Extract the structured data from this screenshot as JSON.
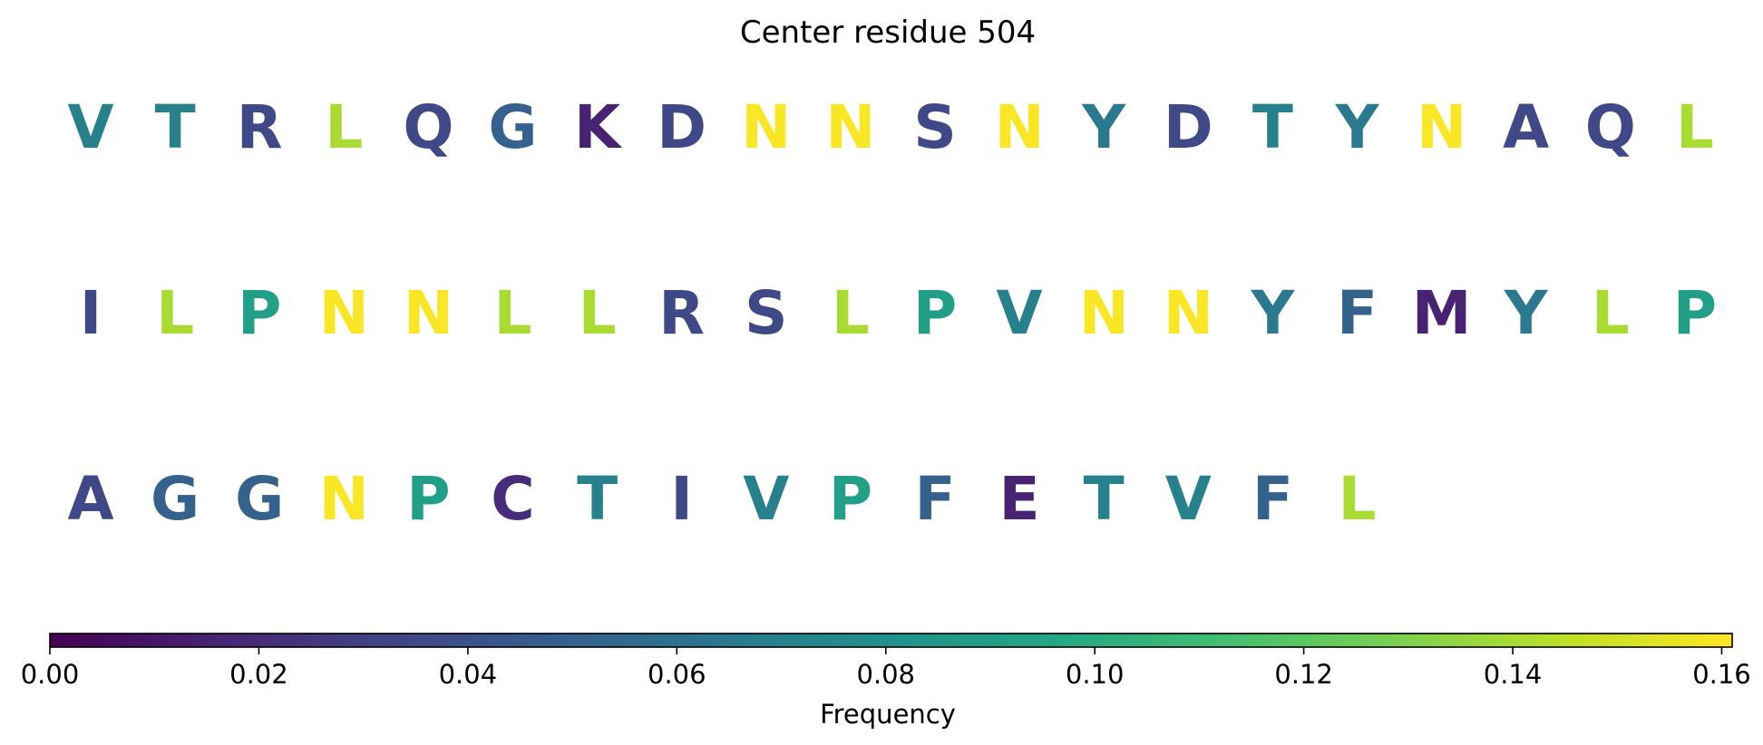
{
  "chart_data": {
    "type": "heatmap",
    "title": "Center residue 504",
    "colorbar": {
      "label": "Frequency",
      "range": [
        0,
        0.161
      ],
      "ticks": [
        "0.00",
        "0.02",
        "0.04",
        "0.06",
        "0.08",
        "0.10",
        "0.12",
        "0.14",
        "0.16"
      ],
      "tick_values": [
        0,
        0.02,
        0.04,
        0.06,
        0.08,
        0.1,
        0.12,
        0.14,
        0.16
      ],
      "colormap": "viridis",
      "orientation": "horizontal",
      "placement": "bottom"
    },
    "rows": [
      [
        {
          "residue": "V",
          "frequency": 0.07
        },
        {
          "residue": "T",
          "frequency": 0.07
        },
        {
          "residue": "R",
          "frequency": 0.035
        },
        {
          "residue": "L",
          "frequency": 0.14
        },
        {
          "residue": "Q",
          "frequency": 0.035
        },
        {
          "residue": "G",
          "frequency": 0.05
        },
        {
          "residue": "K",
          "frequency": 0.015
        },
        {
          "residue": "D",
          "frequency": 0.035
        },
        {
          "residue": "N",
          "frequency": 0.16
        },
        {
          "residue": "N",
          "frequency": 0.16
        },
        {
          "residue": "S",
          "frequency": 0.035
        },
        {
          "residue": "N",
          "frequency": 0.16
        },
        {
          "residue": "Y",
          "frequency": 0.065
        },
        {
          "residue": "D",
          "frequency": 0.035
        },
        {
          "residue": "T",
          "frequency": 0.07
        },
        {
          "residue": "Y",
          "frequency": 0.065
        },
        {
          "residue": "N",
          "frequency": 0.16
        },
        {
          "residue": "A",
          "frequency": 0.035
        },
        {
          "residue": "Q",
          "frequency": 0.035
        },
        {
          "residue": "L",
          "frequency": 0.14
        }
      ],
      [
        {
          "residue": "I",
          "frequency": 0.035
        },
        {
          "residue": "L",
          "frequency": 0.14
        },
        {
          "residue": "P",
          "frequency": 0.09
        },
        {
          "residue": "N",
          "frequency": 0.16
        },
        {
          "residue": "N",
          "frequency": 0.16
        },
        {
          "residue": "L",
          "frequency": 0.14
        },
        {
          "residue": "L",
          "frequency": 0.14
        },
        {
          "residue": "R",
          "frequency": 0.035
        },
        {
          "residue": "S",
          "frequency": 0.035
        },
        {
          "residue": "L",
          "frequency": 0.14
        },
        {
          "residue": "P",
          "frequency": 0.09
        },
        {
          "residue": "V",
          "frequency": 0.07
        },
        {
          "residue": "N",
          "frequency": 0.16
        },
        {
          "residue": "N",
          "frequency": 0.16
        },
        {
          "residue": "Y",
          "frequency": 0.065
        },
        {
          "residue": "F",
          "frequency": 0.05
        },
        {
          "residue": "M",
          "frequency": 0.015
        },
        {
          "residue": "Y",
          "frequency": 0.065
        },
        {
          "residue": "L",
          "frequency": 0.14
        },
        {
          "residue": "P",
          "frequency": 0.09
        }
      ],
      [
        {
          "residue": "A",
          "frequency": 0.035
        },
        {
          "residue": "G",
          "frequency": 0.05
        },
        {
          "residue": "G",
          "frequency": 0.05
        },
        {
          "residue": "N",
          "frequency": 0.16
        },
        {
          "residue": "P",
          "frequency": 0.09
        },
        {
          "residue": "C",
          "frequency": 0.02
        },
        {
          "residue": "T",
          "frequency": 0.07
        },
        {
          "residue": "I",
          "frequency": 0.035
        },
        {
          "residue": "V",
          "frequency": 0.07
        },
        {
          "residue": "P",
          "frequency": 0.09
        },
        {
          "residue": "F",
          "frequency": 0.05
        },
        {
          "residue": "E",
          "frequency": 0.015
        },
        {
          "residue": "T",
          "frequency": 0.07
        },
        {
          "residue": "V",
          "frequency": 0.07
        },
        {
          "residue": "F",
          "frequency": 0.05
        },
        {
          "residue": "L",
          "frequency": 0.14
        }
      ]
    ]
  }
}
